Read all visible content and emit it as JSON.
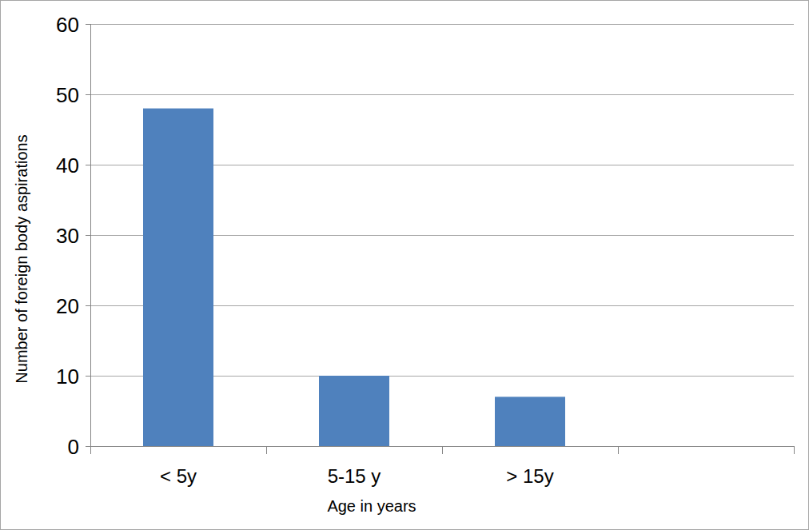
{
  "chart_data": {
    "type": "bar",
    "x_label": "Age in years",
    "y_label": "Number of foreign body aspirations",
    "categories": [
      "< 5y",
      "5-15 y",
      "> 15y",
      null
    ],
    "values": [
      48,
      10,
      7,
      null
    ],
    "color": "#4f81bd",
    "ylim": [
      0,
      60
    ],
    "yticks": [
      0,
      10,
      20,
      30,
      40,
      50,
      60
    ],
    "grid": true
  }
}
